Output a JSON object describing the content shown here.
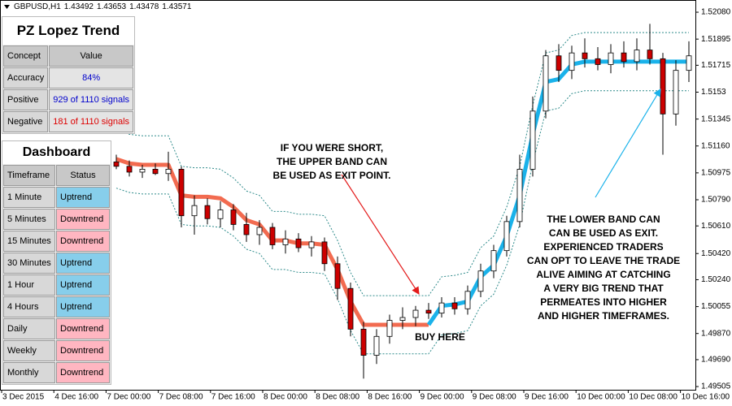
{
  "chart_data": {
    "type": "candlestick",
    "symbol": "GBPUSD,H1",
    "quote": [
      1.43492,
      1.43653,
      1.43478,
      1.43571
    ],
    "ylim": [
      1.49483,
      1.52164
    ],
    "yticks": [
      {
        "value": 1.5208,
        "label": "1.52080"
      },
      1.51895,
      1.51715,
      1.5153,
      1.51345,
      {
        "value": 1.5116,
        "label": "1.51160"
      },
      1.50975,
      {
        "value": 1.5079,
        "label": "1.50790"
      },
      {
        "value": 1.5061,
        "label": "1.50610"
      },
      {
        "value": 1.5042,
        "label": "1.50420"
      },
      {
        "value": 1.5024,
        "label": "1.50240"
      },
      1.50055,
      {
        "value": 1.4987,
        "label": "1.49870"
      },
      {
        "value": 1.4969,
        "label": "1.49690"
      },
      1.49505
    ],
    "x_labels": [
      "3 Dec 2015",
      "4 Dec 16:00",
      "7 Dec 00:00",
      "7 Dec 08:00",
      "7 Dec 16:00",
      "8 Dec 00:00",
      "8 Dec 08:00",
      "8 Dec 16:00",
      "9 Dec 00:00",
      "9 Dec 08:00",
      "9 Dec 16:00",
      "10 Dec 00:00",
      "10 Dec 08:00",
      "10 Dec 16:00"
    ],
    "up_color": "#ffffff",
    "down_color": "#cc0000",
    "candles": [
      [
        1.5105,
        1.511,
        1.51,
        1.5102
      ],
      [
        1.5102,
        1.5106,
        1.5095,
        1.5098
      ],
      [
        1.5098,
        1.5103,
        1.5094,
        1.51
      ],
      [
        1.51,
        1.5104,
        1.5096,
        1.5097
      ],
      [
        1.5097,
        1.5112,
        1.5092,
        1.51
      ],
      [
        1.51,
        1.5102,
        1.506,
        1.5068
      ],
      [
        1.5068,
        1.5082,
        1.5055,
        1.5075
      ],
      [
        1.5075,
        1.508,
        1.5062,
        1.5066
      ],
      [
        1.5066,
        1.5078,
        1.506,
        1.5072
      ],
      [
        1.5072,
        1.5076,
        1.5058,
        1.5062
      ],
      [
        1.5062,
        1.507,
        1.505,
        1.5055
      ],
      [
        1.5055,
        1.5065,
        1.5048,
        1.506
      ],
      [
        1.506,
        1.5063,
        1.5045,
        1.5048
      ],
      [
        1.5048,
        1.5058,
        1.5042,
        1.5052
      ],
      [
        1.5052,
        1.5056,
        1.5043,
        1.5046
      ],
      [
        1.5046,
        1.5054,
        1.504,
        1.505
      ],
      [
        1.505,
        1.5053,
        1.503,
        1.5035
      ],
      [
        1.5035,
        1.504,
        1.501,
        1.5018
      ],
      [
        1.5018,
        1.5022,
        1.4985,
        1.499
      ],
      [
        1.499,
        1.4995,
        1.4956,
        1.4972
      ],
      [
        1.4972,
        1.499,
        1.4966,
        1.4985
      ],
      [
        1.4985,
        1.5,
        1.498,
        1.4996
      ],
      [
        1.4996,
        1.5005,
        1.499,
        1.4998
      ],
      [
        1.4998,
        1.5006,
        1.4992,
        1.5003
      ],
      [
        1.5003,
        1.5008,
        1.4997,
        1.5001
      ],
      [
        1.5001,
        1.5012,
        1.4998,
        1.5008
      ],
      [
        1.5008,
        1.5012,
        1.5,
        1.5004
      ],
      [
        1.5004,
        1.502,
        1.5,
        1.5016
      ],
      [
        1.5016,
        1.5035,
        1.5012,
        1.503
      ],
      [
        1.503,
        1.5048,
        1.5025,
        1.5044
      ],
      [
        1.5044,
        1.5068,
        1.504,
        1.5064
      ],
      [
        1.5064,
        1.511,
        1.506,
        1.51
      ],
      [
        1.51,
        1.515,
        1.5095,
        1.514
      ],
      [
        1.514,
        1.5182,
        1.5135,
        1.5178
      ],
      [
        1.5178,
        1.5186,
        1.516,
        1.5168
      ],
      [
        1.5168,
        1.5185,
        1.5162,
        1.518
      ],
      [
        1.518,
        1.519,
        1.517,
        1.5176
      ],
      [
        1.5176,
        1.5184,
        1.5168,
        1.5172
      ],
      [
        1.5172,
        1.5186,
        1.5166,
        1.518
      ],
      [
        1.518,
        1.5188,
        1.517,
        1.5174
      ],
      [
        1.5174,
        1.519,
        1.5168,
        1.5182
      ],
      [
        1.5182,
        1.52,
        1.5172,
        1.5176
      ],
      [
        1.5176,
        1.518,
        1.511,
        1.5138
      ],
      [
        1.5138,
        1.5175,
        1.513,
        1.5168
      ],
      [
        1.5168,
        1.5188,
        1.516,
        1.5178
      ]
    ],
    "series": [
      {
        "color": "#2e8b8b",
        "style": "dotted",
        "values": [
          1.5127,
          1.5124,
          1.5123,
          1.5123,
          1.5123,
          1.5102,
          1.5101,
          1.5101,
          1.51,
          1.5094,
          1.5085,
          1.5082,
          1.5071,
          1.5071,
          1.5069,
          1.5069,
          1.5068,
          1.5051,
          1.5029,
          1.5013,
          1.5013,
          1.5013,
          1.5013,
          1.5013,
          1.5013,
          1.5026,
          1.5027,
          1.5029,
          1.5046,
          1.5054,
          1.5074,
          1.5102,
          1.5144,
          1.518,
          1.5182,
          1.5192,
          1.5194,
          1.5194,
          1.5194,
          1.5194,
          1.5194,
          1.5194,
          1.5194,
          1.5194,
          1.5194
        ]
      },
      {
        "color": "#2e8b8b",
        "style": "dotted",
        "values": [
          1.5087,
          1.5084,
          1.5083,
          1.5083,
          1.5083,
          1.5062,
          1.5061,
          1.5061,
          1.506,
          1.5054,
          1.5045,
          1.5042,
          1.5031,
          1.5031,
          1.5029,
          1.5029,
          1.5028,
          1.5011,
          1.4989,
          1.4973,
          1.4973,
          1.4973,
          1.4973,
          1.4973,
          1.4973,
          1.4986,
          1.4987,
          1.4989,
          1.5006,
          1.5014,
          1.5034,
          1.5062,
          1.5104,
          1.514,
          1.5142,
          1.5152,
          1.5154,
          1.5154,
          1.5154,
          1.5154,
          1.5154,
          1.5154,
          1.5154,
          1.5154,
          1.5154
        ]
      },
      {
        "color": "#f26b50",
        "style": "thick",
        "values": [
          1.5107,
          1.5104,
          1.5103,
          1.5103,
          1.5103,
          1.5082,
          1.5081,
          1.5081,
          1.508,
          1.5074,
          1.5065,
          1.5062,
          1.5051,
          1.5051,
          1.5049,
          1.5049,
          1.5048,
          1.5031,
          1.5009,
          1.4993,
          1.4993,
          1.4993,
          1.4993,
          1.4993,
          1.4993,
          null,
          null,
          null,
          null,
          null,
          null,
          null,
          null,
          null,
          null,
          null,
          null,
          null,
          null,
          null,
          null,
          null,
          null,
          null,
          null
        ]
      },
      {
        "color": "#1ab2ea",
        "style": "thick",
        "values": [
          null,
          null,
          null,
          null,
          null,
          null,
          null,
          null,
          null,
          null,
          null,
          null,
          null,
          null,
          null,
          null,
          null,
          null,
          null,
          null,
          null,
          null,
          null,
          null,
          1.4993,
          1.5006,
          1.5007,
          1.5009,
          1.5026,
          1.5034,
          1.5054,
          1.5082,
          1.5124,
          1.516,
          1.5162,
          1.5172,
          1.5174,
          1.5174,
          1.5174,
          1.5174,
          1.5174,
          1.5174,
          1.5174,
          1.5174,
          1.5174
        ]
      }
    ],
    "annotations": [
      {
        "color": "#ff0000",
        "text": [
          "IF YOU WERE SHORT,",
          "THE UPPER BAND CAN",
          "BE USED AS EXIT POINT."
        ]
      },
      {
        "color": "#1ab2ea",
        "text": [
          "BUY HERE"
        ]
      },
      {
        "color": "#1ab2ea",
        "text": [
          "THE LOWER BAND CAN",
          "CAN BE USED AS EXIT."
        ]
      },
      {
        "color": "#1ab2ea",
        "text": [
          "EXPERIENCED TRADERS",
          "CAN OPT TO LEAVE THE TRADE",
          "ALIVE AIMING AT CATCHING",
          "A VERY BIG TREND THAT",
          "PERMEATES INTO HIGHER",
          "AND HIGHER TIMEFRAMES."
        ]
      }
    ]
  },
  "stats": {
    "title": "PZ Lopez Trend",
    "header": [
      "Concept",
      "Value"
    ],
    "rows": [
      {
        "concept": "Accuracy",
        "value": "84%",
        "color": "#0000cc"
      },
      {
        "concept": "Positive",
        "value": "929 of 1110 signals",
        "color": "#0000cc"
      },
      {
        "concept": "Negative",
        "value": "181 of 1110 signals",
        "color": "#dd0000"
      }
    ]
  },
  "dashboard": {
    "title": "Dashboard",
    "header": [
      "Timeframe",
      "Status"
    ],
    "rows": [
      {
        "timeframe": "1 Minute",
        "status": "Uptrend",
        "color": "#87ceeb"
      },
      {
        "timeframe": "5 Minutes",
        "status": "Downtrend",
        "color": "#ffb6c1"
      },
      {
        "timeframe": "15 Minutes",
        "status": "Downtrend",
        "color": "#ffb6c1"
      },
      {
        "timeframe": "30 Minutes",
        "status": "Uptrend",
        "color": "#87ceeb"
      },
      {
        "timeframe": "1 Hour",
        "status": "Uptrend",
        "color": "#87ceeb"
      },
      {
        "timeframe": "4 Hours",
        "status": "Uptrend",
        "color": "#87ceeb"
      },
      {
        "timeframe": "Daily",
        "status": "Downtrend",
        "color": "#ffb6c1"
      },
      {
        "timeframe": "Weekly",
        "status": "Downtrend",
        "color": "#ffb6c1"
      },
      {
        "timeframe": "Monthly",
        "status": "Downtrend",
        "color": "#ffb6c1"
      }
    ]
  }
}
